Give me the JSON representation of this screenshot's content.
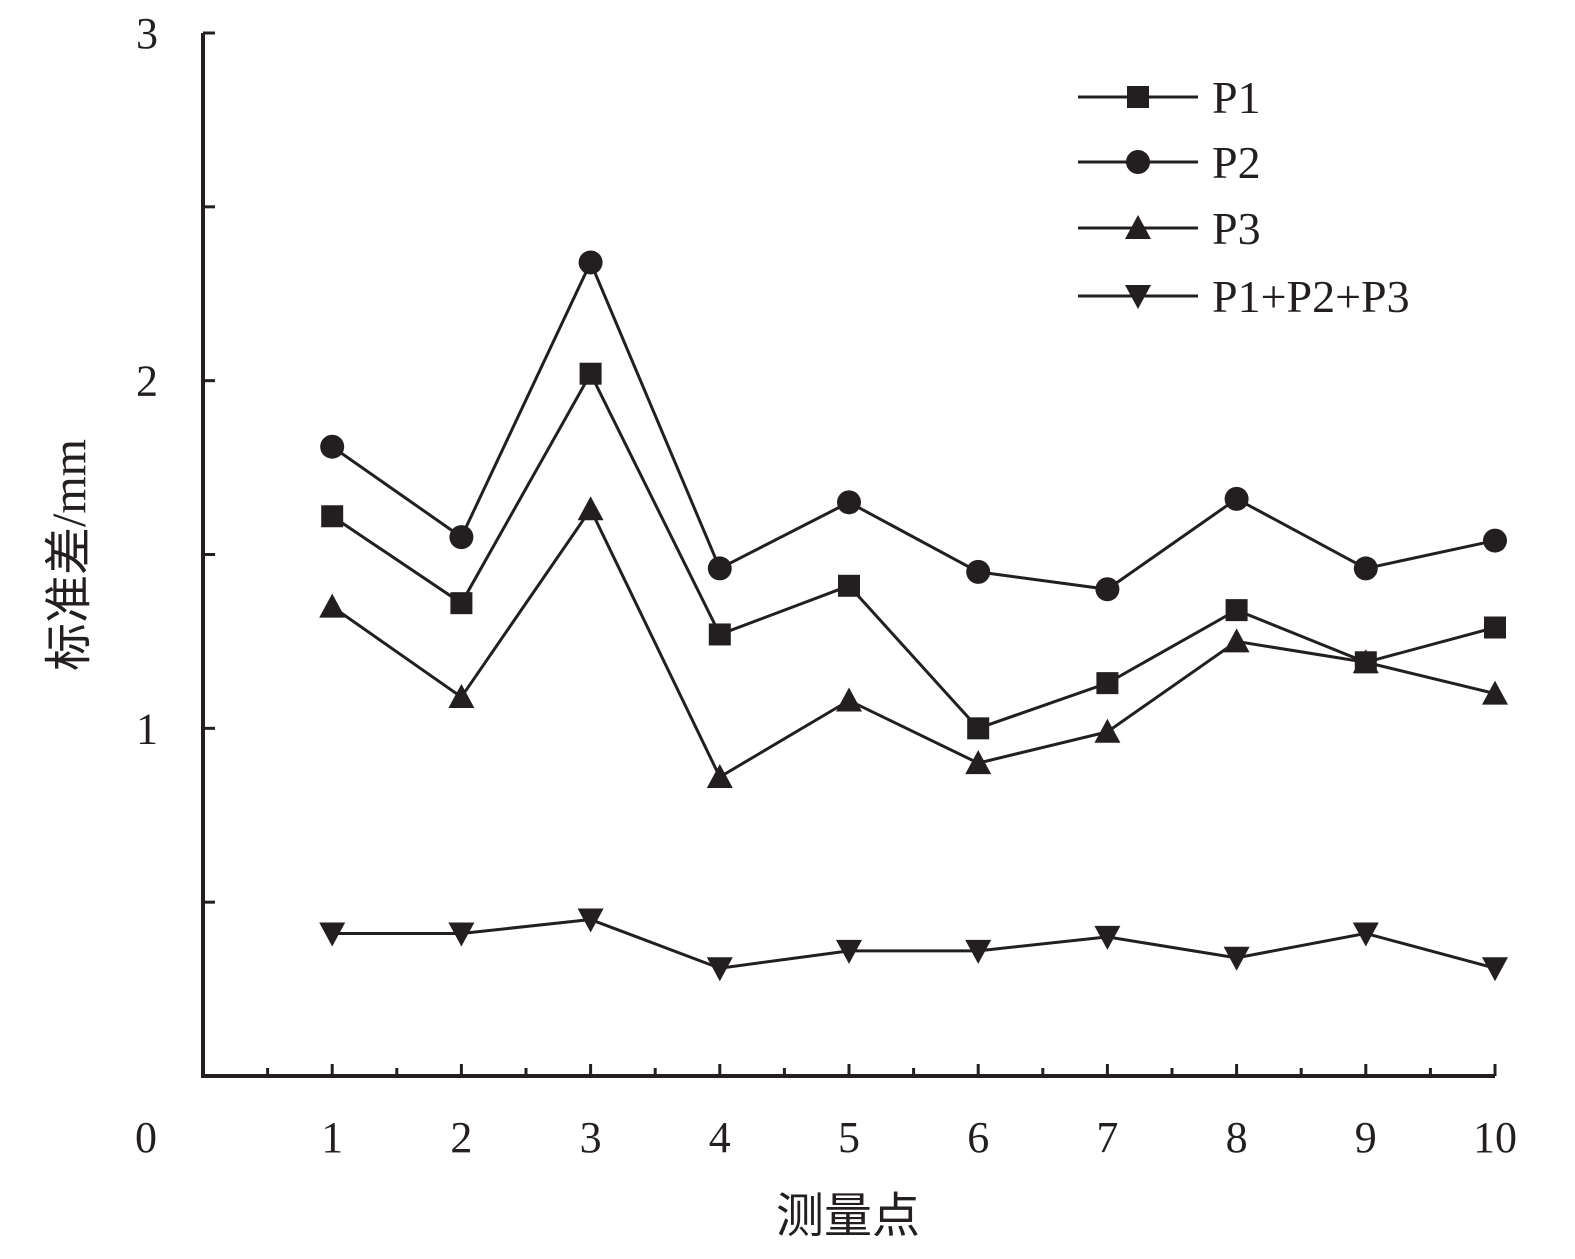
{
  "chart_data": {
    "type": "line",
    "xlabel": "测量点",
    "ylabel": "标准差/mm",
    "xlim": [
      0,
      10
    ],
    "ylim": [
      0,
      3
    ],
    "x_ticks": [
      "0",
      "1",
      "2",
      "3",
      "4",
      "5",
      "6",
      "7",
      "8",
      "9",
      "10"
    ],
    "y_ticks": [
      "1",
      "2",
      "3"
    ],
    "grid": false,
    "legend_position": "top-right",
    "x": [
      1,
      2,
      3,
      4,
      5,
      6,
      7,
      8,
      9,
      10
    ],
    "series": [
      {
        "name": "P1",
        "marker": "square",
        "values": [
          1.61,
          1.36,
          2.02,
          1.27,
          1.41,
          1.0,
          1.13,
          1.34,
          1.19,
          1.29
        ]
      },
      {
        "name": "P2",
        "marker": "circle",
        "values": [
          1.81,
          1.55,
          2.34,
          1.46,
          1.65,
          1.45,
          1.4,
          1.66,
          1.46,
          1.54
        ]
      },
      {
        "name": "P3",
        "marker": "triangle-up",
        "values": [
          1.35,
          1.09,
          1.63,
          0.86,
          1.08,
          0.9,
          0.99,
          1.25,
          1.19,
          1.1
        ]
      },
      {
        "name": "P1+P2+P3",
        "marker": "triangle-down",
        "values": [
          0.41,
          0.41,
          0.45,
          0.31,
          0.36,
          0.36,
          0.4,
          0.34,
          0.41,
          0.31
        ]
      }
    ],
    "colors": {
      "line": "#231f20",
      "axis": "#231f20"
    }
  }
}
